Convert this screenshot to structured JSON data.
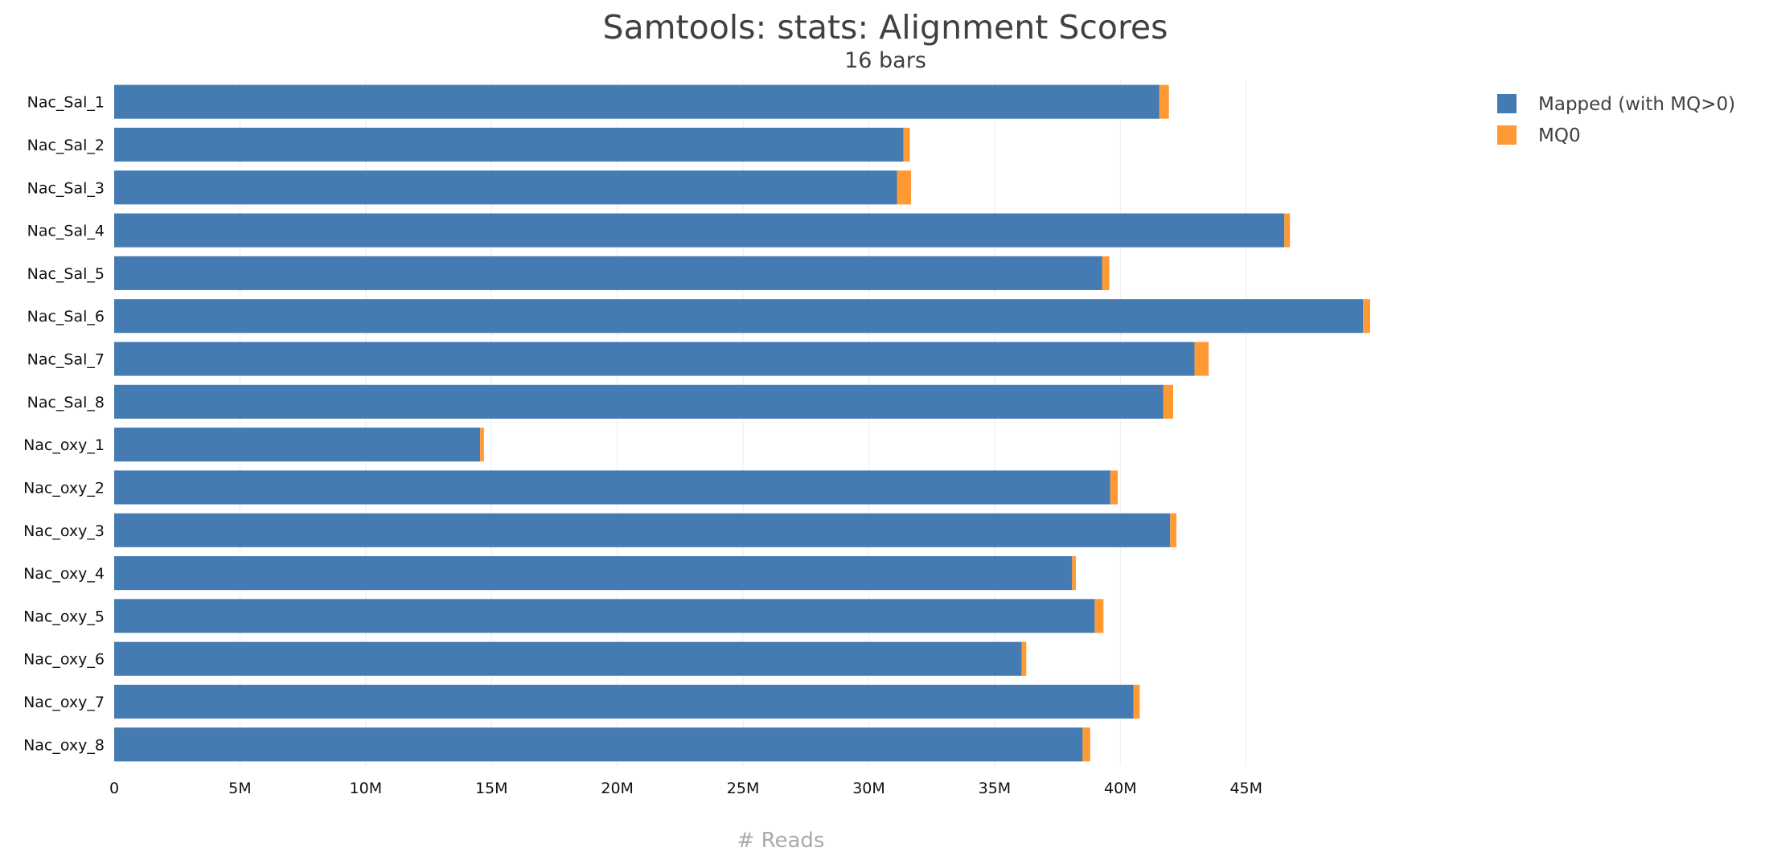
{
  "chart_data": {
    "type": "bar",
    "orientation": "horizontal",
    "stacked": true,
    "title": "Samtools: stats: Alignment Scores",
    "subtitle": "16 bars",
    "xlabel": "# Reads",
    "ylabel": "",
    "xlim": [
      0,
      53000000
    ],
    "x_ticks": [
      0,
      5000000,
      10000000,
      15000000,
      20000000,
      25000000,
      30000000,
      35000000,
      40000000,
      45000000
    ],
    "x_tick_labels": [
      "0",
      "5M",
      "10M",
      "15M",
      "20M",
      "25M",
      "30M",
      "35M",
      "40M",
      "45M"
    ],
    "grid": "vertical",
    "legend_position": "top-right",
    "categories": [
      "Nac_Sal_1",
      "Nac_Sal_2",
      "Nac_Sal_3",
      "Nac_Sal_4",
      "Nac_Sal_5",
      "Nac_Sal_6",
      "Nac_Sal_7",
      "Nac_Sal_8",
      "Nac_oxy_1",
      "Nac_oxy_2",
      "Nac_oxy_3",
      "Nac_oxy_4",
      "Nac_oxy_5",
      "Nac_oxy_6",
      "Nac_oxy_7",
      "Nac_oxy_8"
    ],
    "series": [
      {
        "name": "Mapped (with MQ>0)",
        "color": "#447bb2",
        "values": [
          41550000,
          31380000,
          31120000,
          46520000,
          39280000,
          49650000,
          42950000,
          41700000,
          14550000,
          39600000,
          41980000,
          38080000,
          38980000,
          36080000,
          40520000,
          38500000
        ]
      },
      {
        "name": "MQ0",
        "color": "#ff9933",
        "values": [
          380000,
          250000,
          560000,
          220000,
          280000,
          280000,
          560000,
          400000,
          150000,
          300000,
          250000,
          150000,
          350000,
          180000,
          250000,
          300000
        ]
      }
    ]
  }
}
